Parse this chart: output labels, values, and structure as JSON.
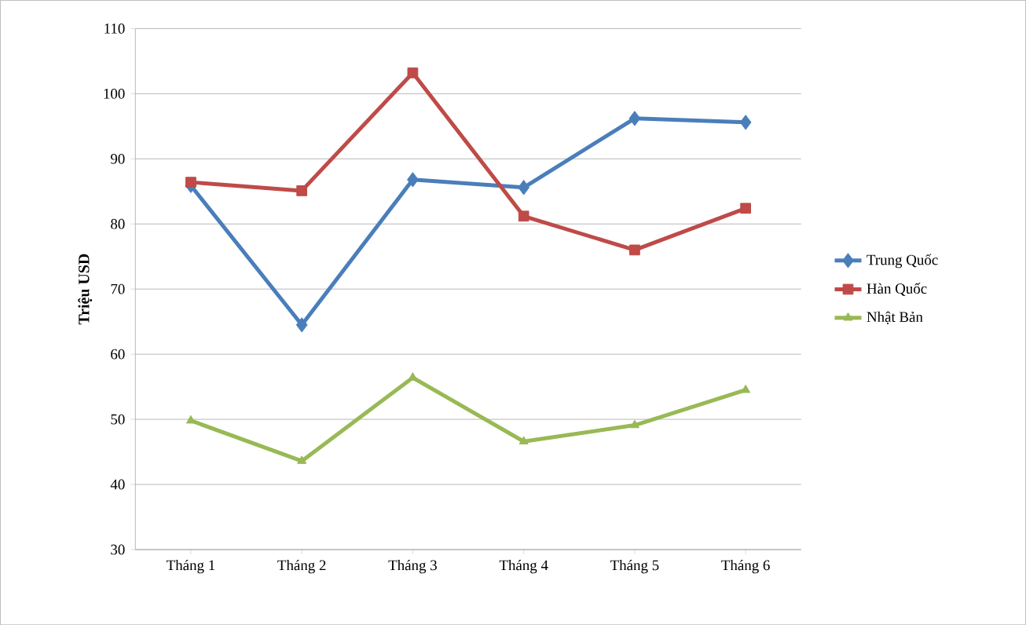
{
  "chart_data": {
    "type": "line",
    "ylabel": "Triệu USD",
    "categories": [
      "Tháng 1",
      "Tháng 2",
      "Tháng 3",
      "Tháng 4",
      "Tháng 5",
      "Tháng 6"
    ],
    "series": [
      {
        "name": "Trung Quốc",
        "color": "#4a7ebb",
        "marker": "diamond",
        "values": [
          85.9,
          64.5,
          86.8,
          85.6,
          96.2,
          95.6
        ]
      },
      {
        "name": "Hàn Quốc",
        "color": "#be4b48",
        "marker": "square",
        "values": [
          86.4,
          85.1,
          103.2,
          81.2,
          76.0,
          82.4
        ]
      },
      {
        "name": "Nhật Bản",
        "color": "#98b954",
        "marker": "triangle",
        "values": [
          49.8,
          43.6,
          56.4,
          46.6,
          49.1,
          54.5
        ]
      }
    ],
    "ylim": [
      30,
      110
    ],
    "yticks": [
      30,
      40,
      50,
      60,
      70,
      80,
      90,
      100,
      110
    ],
    "grid": "y",
    "legend": "right",
    "line_style": "solid"
  }
}
